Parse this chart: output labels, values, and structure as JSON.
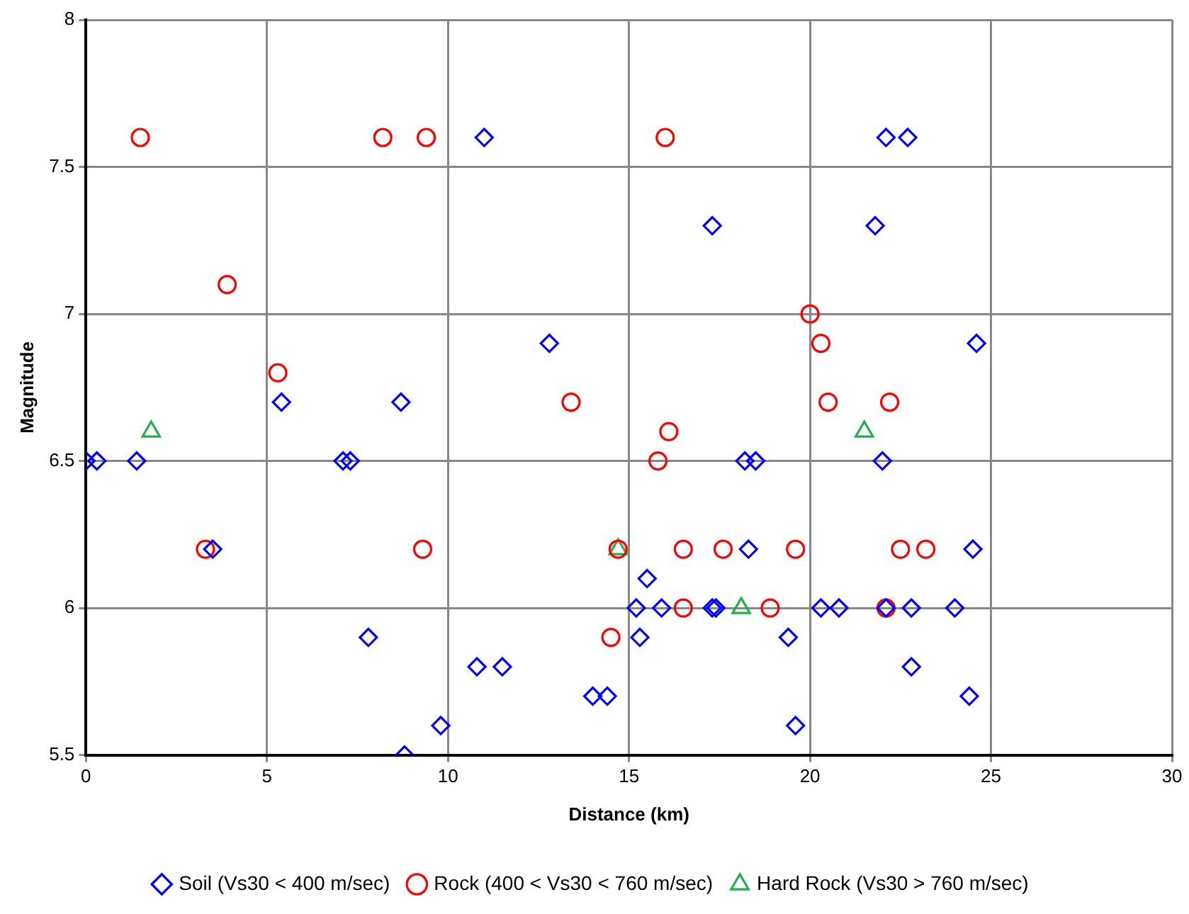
{
  "chart_data": {
    "type": "scatter",
    "xlabel": "Distance (km)",
    "ylabel": "Magnitude",
    "xlim": [
      0,
      30
    ],
    "xticks": [
      0,
      5,
      10,
      15,
      20,
      25,
      30
    ],
    "ylim": [
      5.5,
      8
    ],
    "yticks": [
      5.5,
      6,
      6.5,
      7,
      7.5,
      8
    ],
    "grid": true,
    "legend": "bottom",
    "series": [
      {
        "name": "Soil (Vs30 < 400 m/sec)",
        "color": "#0000ff",
        "marker": "diamond",
        "x": [
          11.0,
          22.1,
          22.7,
          17.3,
          21.8,
          12.8,
          24.6,
          5.4,
          8.7,
          0,
          0.3,
          1.4,
          7.1,
          7.3,
          18.2,
          18.5,
          22.0,
          3.5,
          18.3,
          24.5,
          15.5,
          15.2,
          15.9,
          17.3,
          17.4,
          20.3,
          20.8,
          22.1,
          22.8,
          24.0,
          7.8,
          15.3,
          19.4,
          10.8,
          11.5,
          22.8,
          14.0,
          14.4,
          24.4,
          9.8,
          19.6,
          8.8
        ],
        "values": [
          7.6,
          7.6,
          7.6,
          7.3,
          7.3,
          6.9,
          6.9,
          6.7,
          6.7,
          6.5,
          6.5,
          6.5,
          6.5,
          6.5,
          6.5,
          6.5,
          6.5,
          6.2,
          6.2,
          6.2,
          6.1,
          6.0,
          6.0,
          6.0,
          6.0,
          6.0,
          6.0,
          6.0,
          6.0,
          6.0,
          5.9,
          5.9,
          5.9,
          5.8,
          5.8,
          5.8,
          5.7,
          5.7,
          5.7,
          5.6,
          5.6,
          5.5
        ]
      },
      {
        "name": "Rock (400 < Vs30 < 760 m/sec)",
        "color": "#ff0000",
        "marker": "circle",
        "x": [
          1.5,
          8.2,
          9.4,
          16.0,
          3.9,
          20.0,
          20.3,
          5.3,
          13.4,
          20.5,
          22.2,
          16.1,
          15.8,
          3.3,
          9.3,
          14.7,
          16.5,
          17.6,
          19.6,
          22.5,
          23.2,
          16.5,
          18.9,
          22.1,
          14.5
        ],
        "values": [
          7.6,
          7.6,
          7.6,
          7.6,
          7.1,
          7.0,
          6.9,
          6.8,
          6.7,
          6.7,
          6.7,
          6.6,
          6.5,
          6.2,
          6.2,
          6.2,
          6.2,
          6.2,
          6.2,
          6.2,
          6.2,
          6.0,
          6.0,
          6.0,
          5.9
        ]
      },
      {
        "name": "Hard Rock (Vs30 > 760 m/sec)",
        "color": "#22b04b",
        "marker": "triangle",
        "x": [
          1.8,
          21.5,
          14.7,
          18.1
        ],
        "values": [
          6.6,
          6.6,
          6.2,
          6.0
        ]
      }
    ]
  }
}
